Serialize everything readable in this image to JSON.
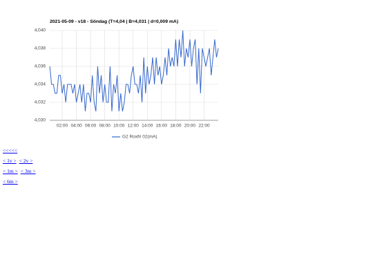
{
  "chart_data": {
    "type": "line",
    "title": "2021-05-09 - v18 - Söndag (T=4,04 | B=4,031 | d=0,009 mA)",
    "x": [
      0.25,
      0.5,
      0.75,
      1,
      1.25,
      1.5,
      1.75,
      2,
      2.25,
      2.5,
      2.75,
      3,
      3.25,
      3.5,
      3.75,
      4,
      4.25,
      4.5,
      4.75,
      5,
      5.25,
      5.5,
      5.75,
      6,
      6.25,
      6.5,
      6.75,
      7,
      7.25,
      7.5,
      7.75,
      8,
      8.25,
      8.5,
      8.75,
      9,
      9.25,
      9.5,
      9.75,
      10,
      10.25,
      10.5,
      10.75,
      11,
      11.25,
      11.5,
      11.75,
      12,
      12.25,
      12.5,
      12.75,
      13,
      13.25,
      13.5,
      13.75,
      14,
      14.25,
      14.5,
      14.75,
      15,
      15.25,
      15.5,
      15.75,
      16,
      16.25,
      16.5,
      16.75,
      17,
      17.25,
      17.5,
      17.75,
      18,
      18.25,
      18.5,
      18.75,
      19,
      19.25,
      19.5,
      19.75,
      20,
      20.25,
      20.5,
      20.75,
      21,
      21.25,
      21.5,
      21.75,
      22,
      22.25,
      22.5,
      22.75,
      23,
      23.25,
      23.5,
      23.75,
      24
    ],
    "series": [
      {
        "name": "G2 Roxfri 02(mA)",
        "color": "#3366cc",
        "values": [
          4.036,
          4.034,
          4.034,
          4.033,
          4.033,
          4.035,
          4.035,
          4.033,
          4.034,
          4.032,
          4.034,
          4.034,
          4.034,
          4.033,
          4.034,
          4.032,
          4.033,
          4.034,
          4.032,
          4.034,
          4.031,
          4.033,
          4.033,
          4.032,
          4.035,
          4.032,
          4.031,
          4.036,
          4.033,
          4.035,
          4.032,
          4.034,
          4.032,
          4.032,
          4.036,
          4.031,
          4.034,
          4.033,
          4.035,
          4.031,
          4.033,
          4.031,
          4.032,
          4.034,
          4.034,
          4.033,
          4.035,
          4.036,
          4.034,
          4.034,
          4.033,
          4.035,
          4.032,
          4.037,
          4.033,
          4.036,
          4.034,
          4.035,
          4.037,
          4.034,
          4.037,
          4.035,
          4.036,
          4.034,
          4.035,
          4.037,
          4.035,
          4.038,
          4.036,
          4.037,
          4.036,
          4.039,
          4.036,
          4.039,
          4.037,
          4.04,
          4.036,
          4.038,
          4.037,
          4.039,
          4.036,
          4.038,
          4.039,
          4.034,
          4.038,
          4.033,
          4.038,
          4.037,
          4.036,
          4.037,
          4.038,
          4.035,
          4.037,
          4.039,
          4.037,
          4.038
        ]
      }
    ],
    "xlim": [
      0,
      24
    ],
    "xticks": [
      {
        "value": 2,
        "label": "02:00"
      },
      {
        "value": 4,
        "label": "04:00"
      },
      {
        "value": 6,
        "label": "06:00"
      },
      {
        "value": 8,
        "label": "08:00"
      },
      {
        "value": 10,
        "label": "10:00"
      },
      {
        "value": 12,
        "label": "12:00"
      },
      {
        "value": 14,
        "label": "14:00"
      },
      {
        "value": 16,
        "label": "16:00"
      },
      {
        "value": 18,
        "label": "18:00"
      },
      {
        "value": 20,
        "label": "20:00"
      },
      {
        "value": 22,
        "label": "22:00"
      }
    ],
    "ylim": [
      4.03,
      4.04
    ],
    "yticks": [
      {
        "value": 4.03,
        "label": "4,030"
      },
      {
        "value": 4.032,
        "label": "4,032"
      },
      {
        "value": 4.034,
        "label": "4,034"
      },
      {
        "value": 4.036,
        "label": "4,036"
      },
      {
        "value": 4.038,
        "label": "4,038"
      },
      {
        "value": 4.04,
        "label": "4,040"
      }
    ],
    "grid": true,
    "legend": "bottom"
  },
  "links": [
    [
      "<<<<<"
    ],
    [
      "< 1v >",
      "< 2v >"
    ],
    [
      "< 1m >",
      "< 3m >"
    ],
    [
      "< 6m >"
    ]
  ]
}
